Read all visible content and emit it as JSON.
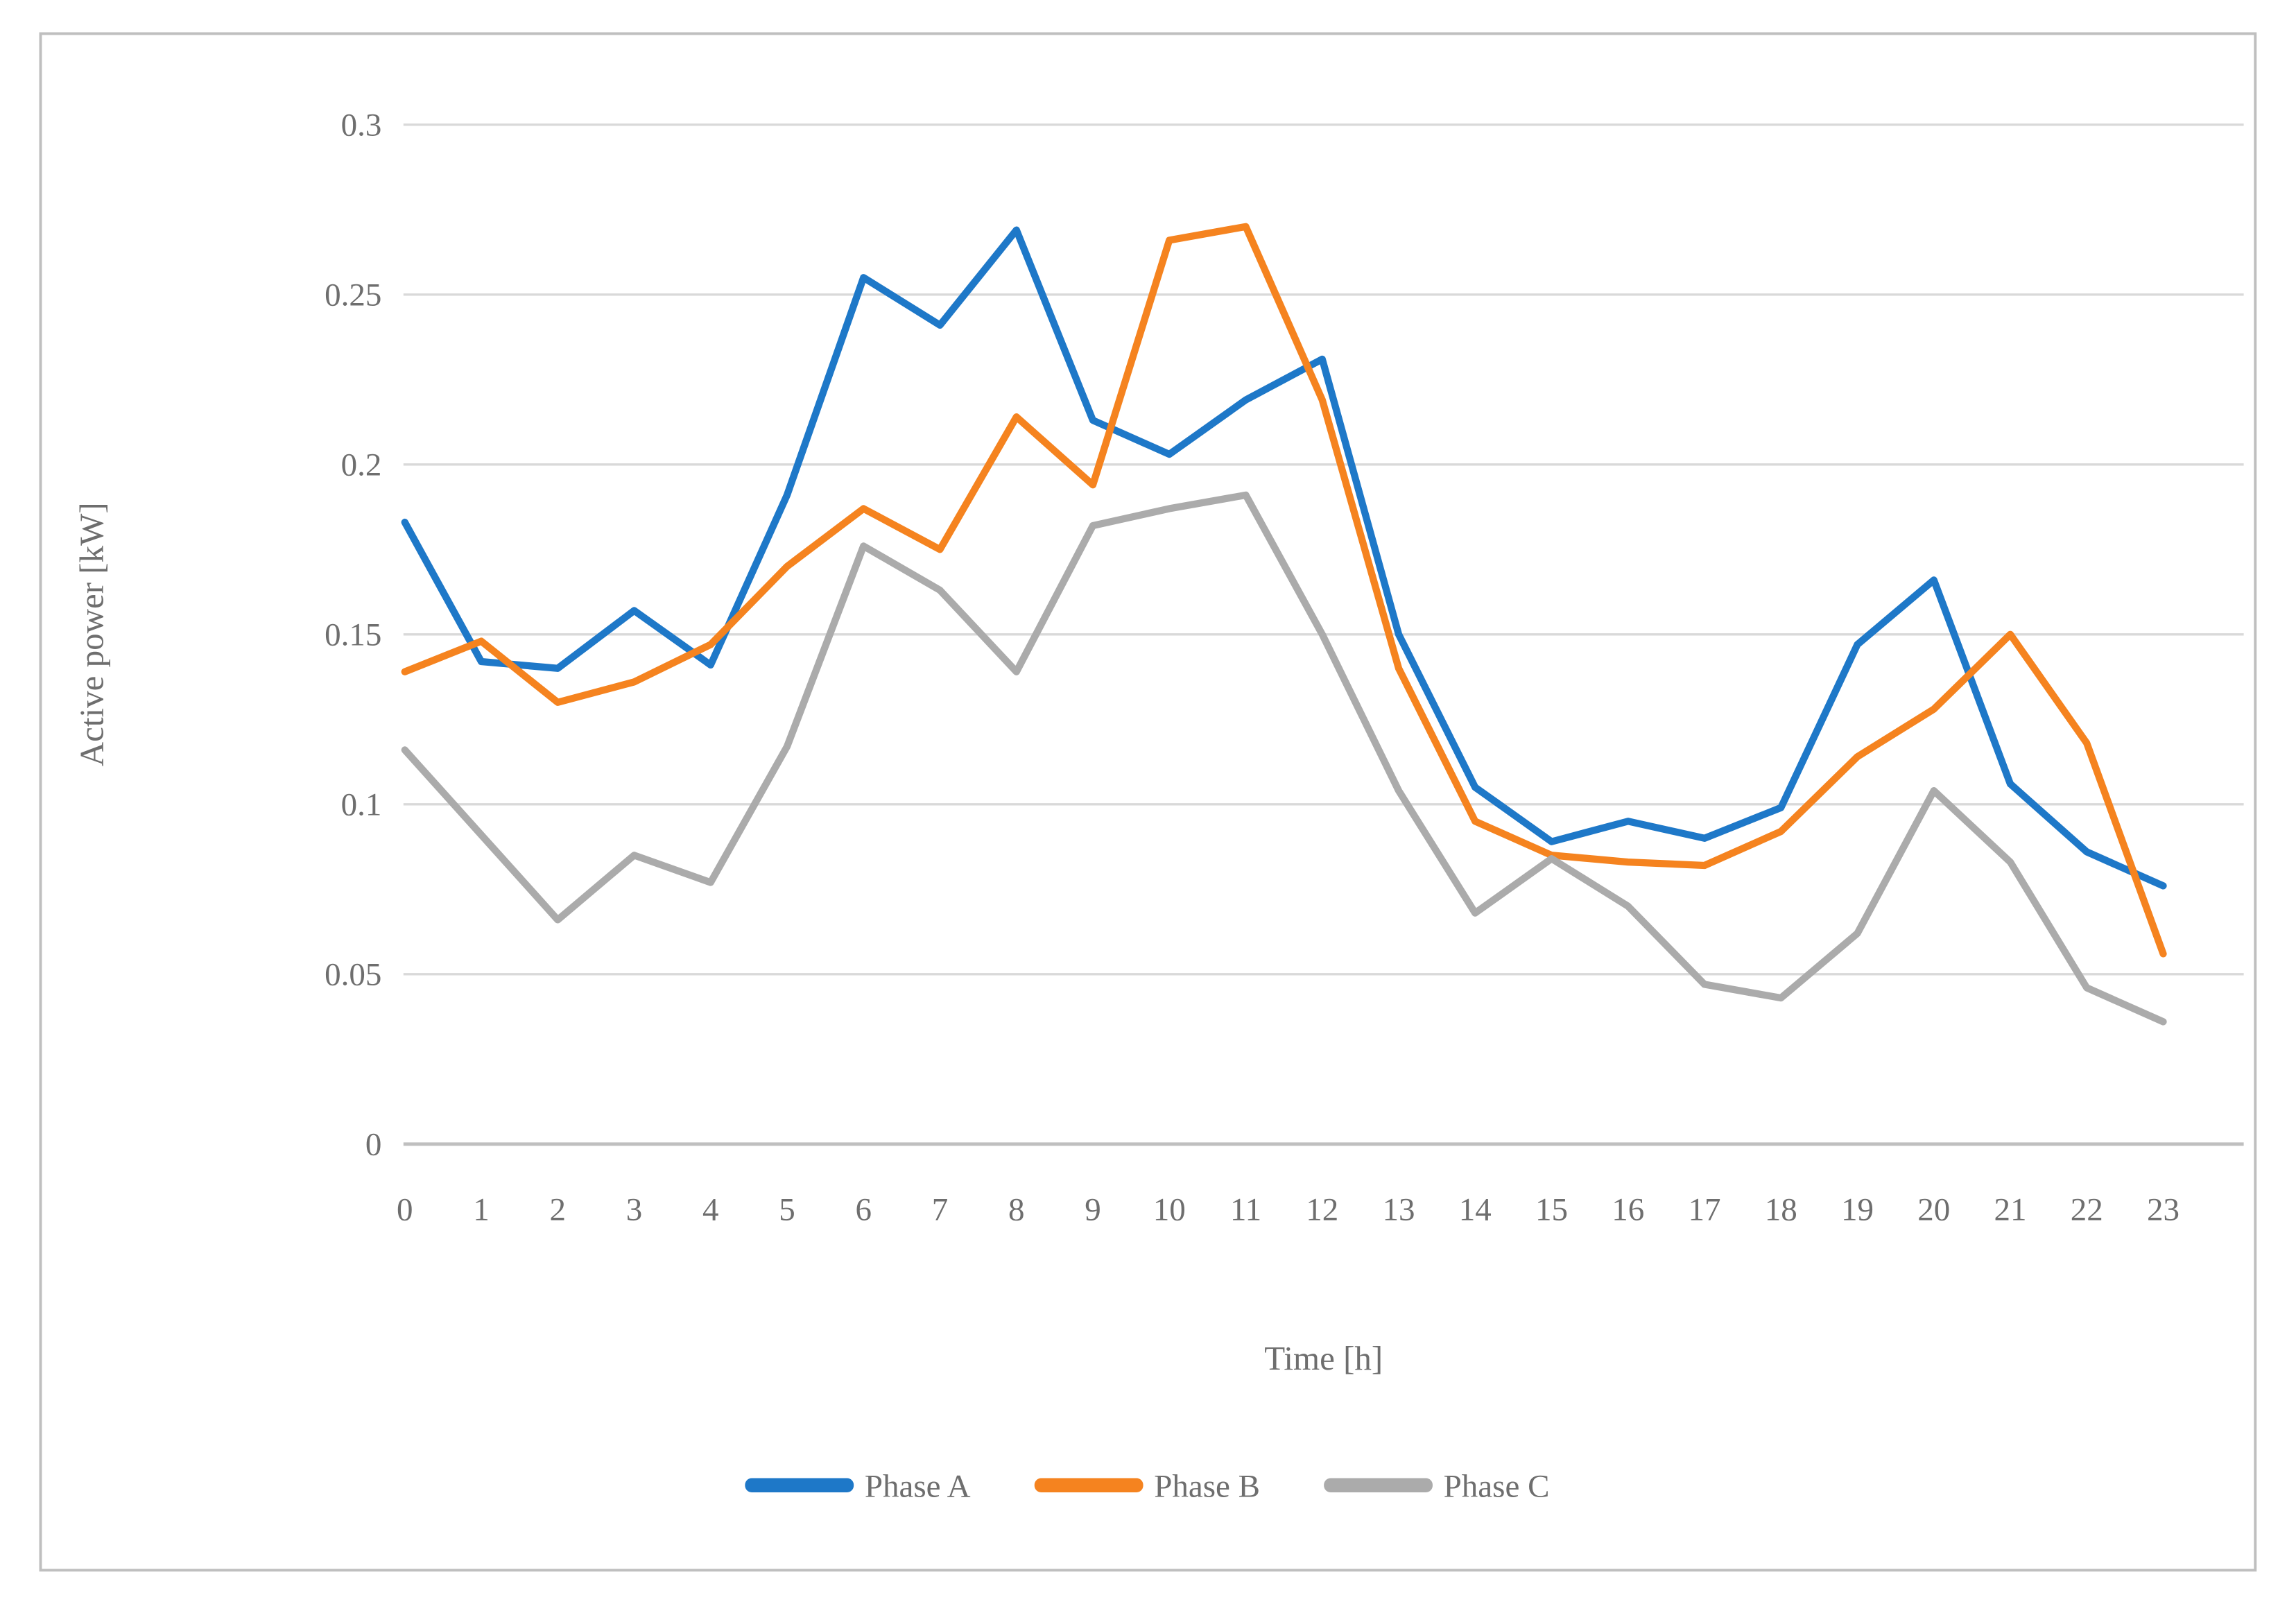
{
  "chart_data": {
    "type": "line",
    "title": "",
    "xlabel": "Time [h]",
    "ylabel": "Active power [kW]",
    "x": [
      0,
      1,
      2,
      3,
      4,
      5,
      6,
      7,
      8,
      9,
      10,
      11,
      12,
      13,
      14,
      15,
      16,
      17,
      18,
      19,
      20,
      21,
      22,
      23
    ],
    "xtick_labels": [
      "0",
      "1",
      "2",
      "3",
      "4",
      "5",
      "6",
      "7",
      "8",
      "9",
      "10",
      "11",
      "12",
      "13",
      "14",
      "15",
      "16",
      "17",
      "18",
      "19",
      "20",
      "21",
      "22",
      "23"
    ],
    "ylim": [
      0,
      0.3
    ],
    "yticks": [
      0,
      0.05,
      0.1,
      0.15,
      0.2,
      0.25,
      0.3
    ],
    "ytick_labels": [
      "0",
      "0.05",
      "0.1",
      "0.15",
      "0.2",
      "0.25",
      "0.3"
    ],
    "grid": "horizontal",
    "legend_position": "bottom-center",
    "series": [
      {
        "name": "Phase A",
        "color": "#1E78C8",
        "values": [
          0.183,
          0.142,
          0.14,
          0.157,
          0.141,
          0.191,
          0.255,
          0.241,
          0.269,
          0.213,
          0.203,
          0.219,
          0.231,
          0.15,
          0.105,
          0.089,
          0.095,
          0.09,
          0.099,
          0.147,
          0.166,
          0.106,
          0.086,
          0.076
        ]
      },
      {
        "name": "Phase B",
        "color": "#F5831F",
        "values": [
          0.139,
          0.148,
          0.13,
          0.136,
          0.147,
          0.17,
          0.187,
          0.175,
          0.214,
          0.194,
          0.266,
          0.27,
          0.219,
          0.14,
          0.095,
          0.085,
          0.083,
          0.082,
          0.092,
          0.114,
          0.128,
          0.15,
          0.118,
          0.056
        ]
      },
      {
        "name": "Phase C",
        "color": "#ABABAB",
        "values": [
          0.116,
          0.091,
          0.066,
          0.085,
          0.077,
          0.117,
          0.176,
          0.163,
          0.139,
          0.182,
          0.187,
          0.191,
          0.15,
          0.104,
          0.068,
          0.084,
          0.07,
          0.047,
          0.043,
          0.062,
          0.104,
          0.083,
          0.046,
          0.036
        ]
      }
    ],
    "style": {
      "gridline_color": "#D9D9D9",
      "axis_line_color": "#BFBFBF",
      "frame_border_color": "#BFBFBF",
      "text_color": "#6E6E6E",
      "background": "#FFFFFF"
    }
  }
}
